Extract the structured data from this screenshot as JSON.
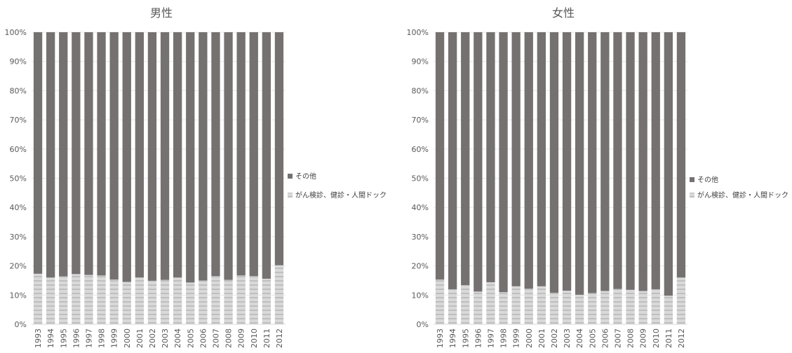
{
  "chart_data": [
    {
      "type": "bar",
      "stacked": true,
      "normalized_percent": true,
      "title": "男性",
      "xlabel": "",
      "ylabel": "",
      "ylim": [
        0,
        100
      ],
      "y_ticks": [
        "0%",
        "10%",
        "20%",
        "30%",
        "40%",
        "50%",
        "60%",
        "70%",
        "80%",
        "90%",
        "100%"
      ],
      "categories": [
        "1993",
        "1994",
        "1995",
        "1996",
        "1997",
        "1998",
        "1999",
        "2000",
        "2001",
        "2002",
        "2003",
        "2004",
        "2005",
        "2006",
        "2007",
        "2008",
        "2009",
        "2010",
        "2011",
        "2012"
      ],
      "series": [
        {
          "name": "がん検診、健診・人間ドック",
          "color": "#d9d9d9",
          "pattern": "horizontal-stripes",
          "values": [
            17.3,
            16.0,
            16.4,
            17.2,
            16.9,
            16.7,
            15.3,
            14.5,
            16.0,
            14.9,
            15.2,
            16.0,
            14.3,
            15.0,
            16.5,
            15.2,
            16.7,
            16.5,
            15.6,
            20.2
          ]
        },
        {
          "name": "その他",
          "color": "#767171",
          "values": [
            82.7,
            84.0,
            83.6,
            82.8,
            83.1,
            83.3,
            84.7,
            85.5,
            84.0,
            85.1,
            84.8,
            84.0,
            85.7,
            85.0,
            83.5,
            84.8,
            83.3,
            83.5,
            84.4,
            79.8
          ]
        }
      ],
      "legend_position": "right",
      "legend_order": [
        "その他",
        "がん検診、健診・人間ドック"
      ],
      "grid": true
    },
    {
      "type": "bar",
      "stacked": true,
      "normalized_percent": true,
      "title": "女性",
      "xlabel": "",
      "ylabel": "",
      "ylim": [
        0,
        100
      ],
      "y_ticks": [
        "0%",
        "10%",
        "20%",
        "30%",
        "40%",
        "50%",
        "60%",
        "70%",
        "80%",
        "90%",
        "100%"
      ],
      "categories": [
        "1993",
        "1994",
        "1995",
        "1996",
        "1997",
        "1998",
        "1999",
        "2000",
        "2001",
        "2002",
        "2003",
        "2004",
        "2005",
        "2006",
        "2007",
        "2008",
        "2009",
        "2010",
        "2011",
        "2012"
      ],
      "series": [
        {
          "name": "がん検診、健診・人間ドック",
          "color": "#d9d9d9",
          "pattern": "horizontal-stripes",
          "values": [
            15.3,
            12.0,
            13.4,
            11.2,
            14.4,
            11.0,
            13.0,
            12.2,
            13.0,
            10.8,
            11.5,
            10.1,
            10.7,
            11.4,
            12.1,
            11.8,
            11.4,
            12.0,
            9.8,
            16.0
          ]
        },
        {
          "name": "その他",
          "color": "#767171",
          "values": [
            84.7,
            88.0,
            86.6,
            88.8,
            85.6,
            89.0,
            87.0,
            87.8,
            87.0,
            89.2,
            88.5,
            89.9,
            89.3,
            88.6,
            87.9,
            88.2,
            88.6,
            88.0,
            90.2,
            84.0
          ]
        }
      ],
      "legend_position": "right",
      "legend_order": [
        "その他",
        "がん検診、健診・人間ドック"
      ],
      "grid": true
    }
  ]
}
